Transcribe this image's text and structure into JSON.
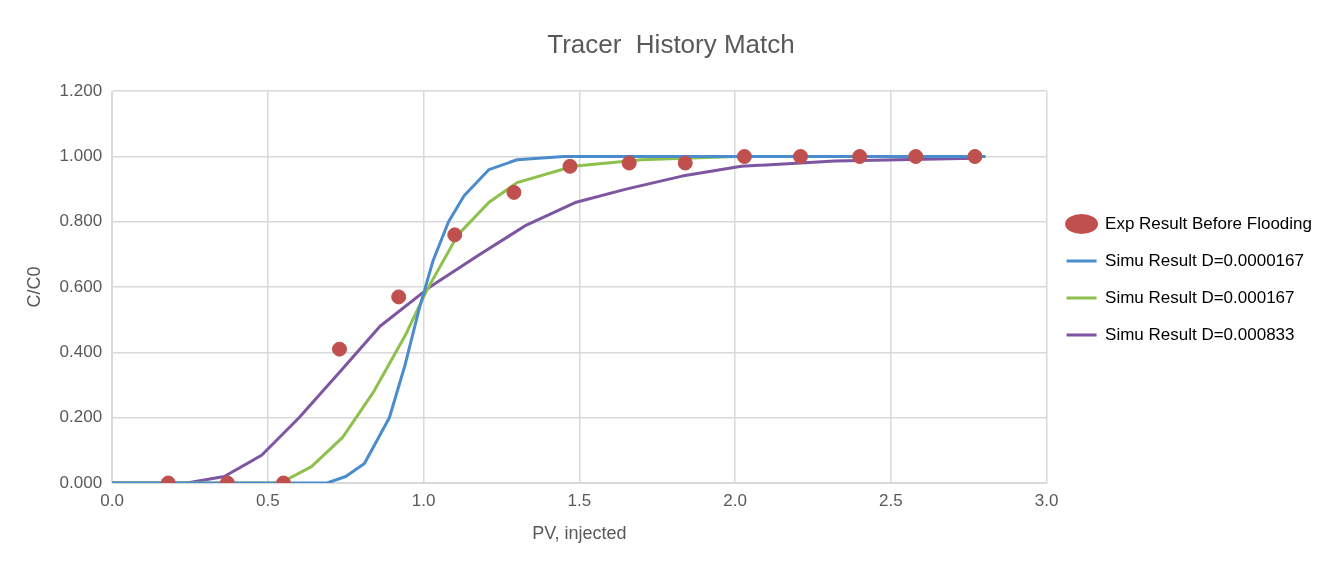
{
  "chart_data": {
    "type": "scatter",
    "title": "Tracer  History Match",
    "xlabel": "PV, injected",
    "ylabel": "C/C0",
    "xlim": [
      0,
      3
    ],
    "xticks": [
      {
        "value": 0,
        "label": "0.0"
      },
      {
        "value": 0.5,
        "label": "0.5"
      },
      {
        "value": 1,
        "label": "1.0"
      },
      {
        "value": 1.5,
        "label": "1.5"
      },
      {
        "value": 2,
        "label": "2.0"
      },
      {
        "value": 2.5,
        "label": "2.5"
      },
      {
        "value": 3,
        "label": "3.0"
      }
    ],
    "ylim": [
      0,
      1.2
    ],
    "yticks": [
      {
        "value": 0,
        "label": "0.000"
      },
      {
        "value": 0.2,
        "label": "0.200"
      },
      {
        "value": 0.4,
        "label": "0.400"
      },
      {
        "value": 0.6,
        "label": "0.600"
      },
      {
        "value": 0.8,
        "label": "0.800"
      },
      {
        "value": 1,
        "label": "1.000"
      },
      {
        "value": 1.2,
        "label": "1.200"
      }
    ],
    "grid": true,
    "legend": "right",
    "series": [
      {
        "name": "Exp Result Before Flooding",
        "marker": "circle",
        "color": "#c0504d",
        "x": [
          0.18,
          0.37,
          0.55,
          0.73,
          0.92,
          1.1,
          1.29,
          1.47,
          1.66,
          1.84,
          2.03,
          2.21,
          2.4,
          2.58,
          2.77
        ],
        "values": [
          0,
          0,
          0,
          0.41,
          0.57,
          0.76,
          0.89,
          0.97,
          0.98,
          0.98,
          1.0,
          1.0,
          1.0,
          1.0,
          1.0
        ]
      },
      {
        "name": "Simu Result D=0.0000167",
        "type": "line",
        "marker": "none",
        "color": "#4a8ccc",
        "x": [
          0,
          0.69,
          0.75,
          0.81,
          0.89,
          0.94,
          0.985,
          1.03,
          1.08,
          1.13,
          1.21,
          1.3,
          1.45,
          2.8
        ],
        "values": [
          0,
          0,
          0.02,
          0.06,
          0.2,
          0.36,
          0.53,
          0.68,
          0.8,
          0.88,
          0.96,
          0.99,
          1.0,
          1.0
        ]
      },
      {
        "name": "Simu Result D=0.000167",
        "type": "line",
        "marker": "none",
        "color": "#8dc04c",
        "x": [
          0,
          0.54,
          0.64,
          0.74,
          0.84,
          0.94,
          1.01,
          1.11,
          1.21,
          1.3,
          1.48,
          1.7,
          2.0,
          2.8
        ],
        "values": [
          0,
          0,
          0.05,
          0.14,
          0.28,
          0.45,
          0.59,
          0.76,
          0.86,
          0.92,
          0.97,
          0.99,
          1.0,
          1.0
        ]
      },
      {
        "name": "Simu Result D=0.000833",
        "type": "line",
        "marker": "none",
        "color": "#7d55a0",
        "x": [
          0,
          0.24,
          0.36,
          0.48,
          0.6,
          0.74,
          0.86,
          1.02,
          1.18,
          1.33,
          1.49,
          1.65,
          1.83,
          2.02,
          2.32,
          2.77
        ],
        "values": [
          0,
          0,
          0.02,
          0.085,
          0.2,
          0.35,
          0.48,
          0.6,
          0.7,
          0.79,
          0.86,
          0.9,
          0.94,
          0.97,
          0.986,
          0.995
        ]
      }
    ]
  }
}
